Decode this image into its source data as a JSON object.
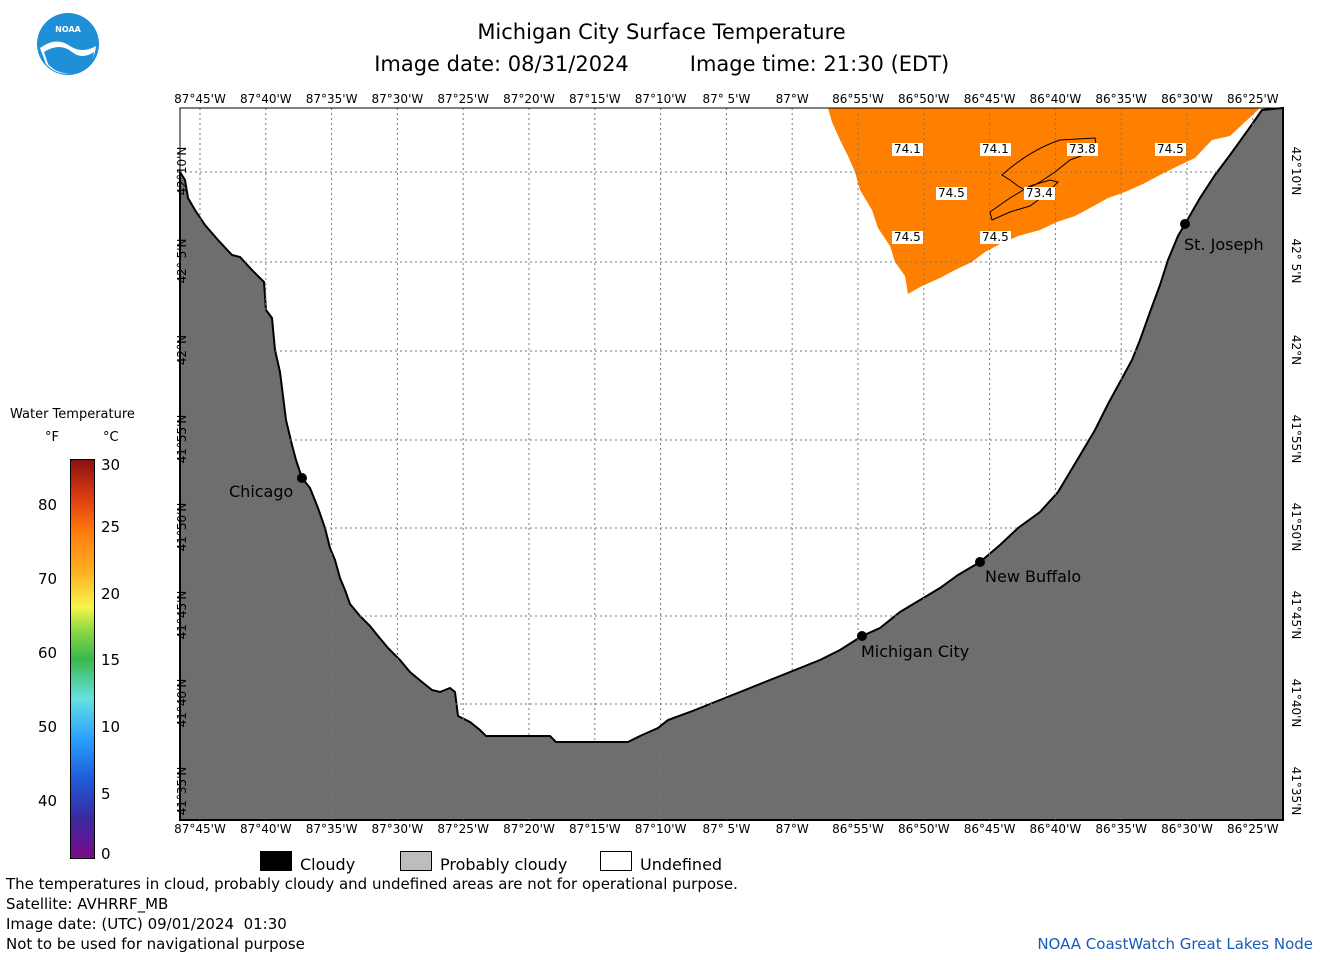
{
  "header": {
    "title": "Michigan City Surface Temperature",
    "image_date": "Image date: 08/31/2024",
    "image_time": "Image time: 21:30 (EDT)"
  },
  "map": {
    "lon_labels": [
      "87°45'W",
      "87°40'W",
      "87°35'W",
      "87°30'W",
      "87°25'W",
      "87°20'W",
      "87°15'W",
      "87°10'W",
      "87° 5'W",
      "87°W",
      "86°55'W",
      "86°50'W",
      "86°45'W",
      "86°40'W",
      "86°35'W",
      "86°30'W",
      "86°25'W"
    ],
    "lat_labels": [
      "42°10'N",
      "42° 5'N",
      "42°N",
      "41°55'N",
      "41°50'N",
      "41°45'N",
      "41°40'N",
      "41°35'N"
    ],
    "temperatures": [
      "74.1",
      "74.1",
      "73.8",
      "74.5",
      "74.5",
      "73.4",
      "74.5",
      "74.5"
    ],
    "cities": [
      "Chicago",
      "Michigan City",
      "New Buffalo",
      "St. Joseph"
    ],
    "colors": {
      "land": "#6e6e6e",
      "water_temp": "#ff8000",
      "undefined": "#ffffff"
    }
  },
  "legend": {
    "title": "Water Temperature",
    "unit_f": "°F",
    "unit_c": "°C",
    "f_ticks": [
      "80",
      "70",
      "60",
      "50",
      "40"
    ],
    "c_ticks": [
      "30",
      "25",
      "20",
      "15",
      "10",
      "5",
      "0"
    ],
    "keys": [
      "Cloudy",
      "Probably cloudy",
      "Undefined"
    ]
  },
  "footer": {
    "line1": "The temperatures in cloud, probably cloudy and undefined areas are not for operational purpose.",
    "line2": "Satellite: AVHRRF_MB",
    "line3": "Image date: (UTC) 09/01/2024  01:30",
    "line4": "Not to be used for navigational purpose",
    "credit": "NOAA CoastWatch Great Lakes Node"
  }
}
